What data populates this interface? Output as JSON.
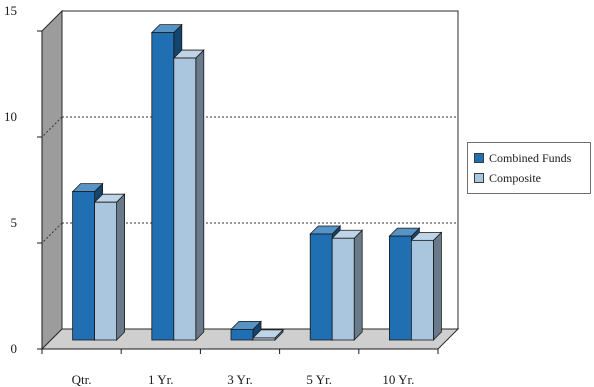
{
  "chart_data": {
    "type": "bar",
    "title": "",
    "xlabel": "",
    "ylabel": "",
    "categories": [
      "Qtr.",
      "1 Yr.",
      "3 Yr.",
      "5 Yr.",
      "10 Yr."
    ],
    "series": [
      {
        "name": "Combined Funds",
        "values": [
          7.0,
          14.5,
          0.5,
          5.0,
          4.9
        ],
        "color": "#1f6fb2"
      },
      {
        "name": "Composite",
        "values": [
          6.5,
          13.3,
          0.1,
          4.8,
          4.7
        ],
        "color": "#a9c6de"
      }
    ],
    "ylim": [
      0,
      15
    ],
    "yticks": [
      "0",
      "5",
      "10",
      "15"
    ],
    "grid": "dashed horizontal at 5 and 10",
    "legend_position": "right",
    "style": "3d-bar"
  },
  "colors": {
    "wall_front": "#ffffff",
    "wall_side": "#9c9c9c",
    "floor": "#cfcfcf"
  }
}
